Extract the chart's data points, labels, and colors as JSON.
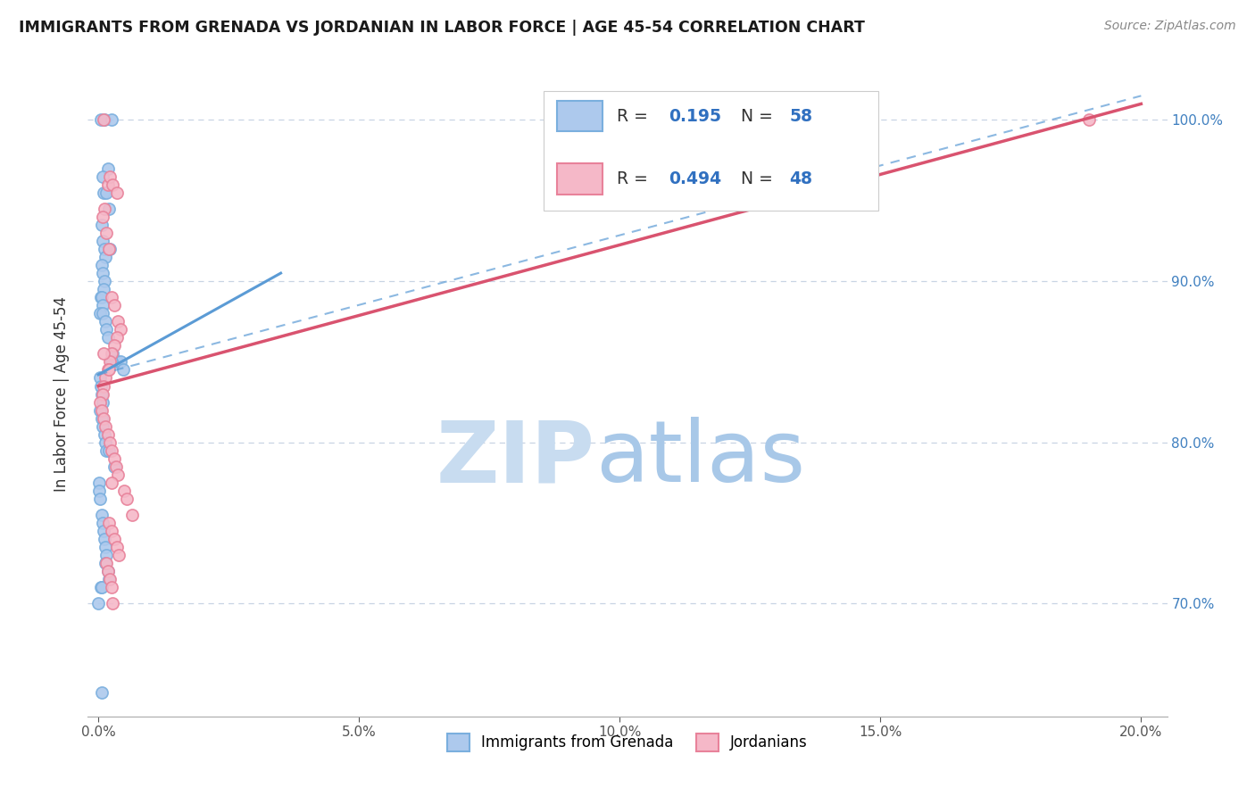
{
  "title": "IMMIGRANTS FROM GRENADA VS JORDANIAN IN LABOR FORCE | AGE 45-54 CORRELATION CHART",
  "source": "Source: ZipAtlas.com",
  "ylabel": "In Labor Force | Age 45-54",
  "xlim": [
    -0.2,
    20.5
  ],
  "ylim": [
    63.0,
    103.0
  ],
  "series1_label": "Immigrants from Grenada",
  "series1_R": "0.195",
  "series1_N": "58",
  "series1_fill_color": "#adc9ed",
  "series1_edge_color": "#7aafde",
  "series1_line_color": "#5b9bd5",
  "series2_label": "Jordanians",
  "series2_R": "0.494",
  "series2_N": "48",
  "series2_fill_color": "#f5b8c8",
  "series2_edge_color": "#e8829a",
  "series2_line_color": "#d9536f",
  "legend_color": "#3070c0",
  "watermark_zip_color": "#c8dcf0",
  "watermark_atlas_color": "#a8c8e8",
  "grid_color": "#c8d4e4",
  "ytick_color": "#4080c0",
  "xtick_color": "#555555",
  "title_color": "#1a1a1a",
  "source_color": "#888888",
  "ylabel_color": "#333333",
  "series1_x": [
    0.05,
    0.12,
    0.18,
    0.25,
    0.08,
    0.1,
    0.15,
    0.2,
    0.06,
    0.09,
    0.11,
    0.14,
    0.07,
    0.08,
    0.12,
    0.1,
    0.05,
    0.06,
    0.08,
    0.04,
    0.09,
    0.13,
    0.16,
    0.22,
    0.18,
    0.28,
    0.35,
    0.42,
    0.48,
    0.03,
    0.05,
    0.07,
    0.09,
    0.04,
    0.06,
    0.08,
    0.11,
    0.13,
    0.16,
    0.2,
    0.25,
    0.3,
    0.01,
    0.02,
    0.04,
    0.06,
    0.08,
    0.1,
    0.12,
    0.14,
    0.16,
    0.18,
    0.2,
    0.05,
    0.07,
    0.14,
    0.0,
    0.07
  ],
  "series1_y": [
    100.0,
    100.0,
    97.0,
    100.0,
    96.5,
    95.5,
    95.5,
    94.5,
    93.5,
    92.5,
    92.0,
    91.5,
    91.0,
    90.5,
    90.0,
    89.5,
    89.0,
    89.0,
    88.5,
    88.0,
    88.0,
    87.5,
    87.0,
    92.0,
    86.5,
    85.5,
    85.0,
    85.0,
    84.5,
    84.0,
    83.5,
    83.0,
    82.5,
    82.0,
    81.5,
    81.0,
    80.5,
    80.0,
    79.5,
    79.5,
    85.0,
    78.5,
    77.5,
    77.0,
    76.5,
    75.5,
    75.0,
    74.5,
    74.0,
    73.5,
    73.0,
    72.0,
    71.5,
    71.0,
    71.0,
    72.5,
    70.0,
    64.5
  ],
  "series2_x": [
    0.1,
    0.18,
    0.22,
    0.28,
    0.35,
    0.12,
    0.08,
    0.15,
    0.2,
    0.25,
    0.3,
    0.38,
    0.42,
    0.35,
    0.3,
    0.25,
    0.22,
    0.18,
    0.14,
    0.1,
    0.08,
    0.04,
    0.06,
    0.1,
    0.14,
    0.18,
    0.22,
    0.26,
    0.3,
    0.34,
    0.38,
    0.1,
    0.2,
    0.25,
    0.5,
    0.55,
    0.65,
    0.2,
    0.25,
    0.3,
    19.0,
    0.35,
    0.4,
    0.15,
    0.18,
    0.22,
    0.26,
    0.28
  ],
  "series2_y": [
    100.0,
    96.0,
    96.5,
    96.0,
    95.5,
    94.5,
    94.0,
    93.0,
    92.0,
    89.0,
    88.5,
    87.5,
    87.0,
    86.5,
    86.0,
    85.5,
    85.0,
    84.5,
    84.0,
    83.5,
    83.0,
    82.5,
    82.0,
    81.5,
    81.0,
    80.5,
    80.0,
    79.5,
    79.0,
    78.5,
    78.0,
    85.5,
    84.5,
    77.5,
    77.0,
    76.5,
    75.5,
    75.0,
    74.5,
    74.0,
    100.0,
    73.5,
    73.0,
    72.5,
    72.0,
    71.5,
    71.0,
    70.0
  ],
  "reg1_x0": 0.0,
  "reg1_y0": 84.2,
  "reg1_x1": 3.5,
  "reg1_y1": 90.5,
  "reg1_dashed_x0": 0.0,
  "reg1_dashed_y0": 84.2,
  "reg1_dashed_x1": 20.0,
  "reg1_dashed_y1": 101.5,
  "reg2_x0": 0.0,
  "reg2_y0": 83.5,
  "reg2_x1": 20.0,
  "reg2_y1": 101.0
}
